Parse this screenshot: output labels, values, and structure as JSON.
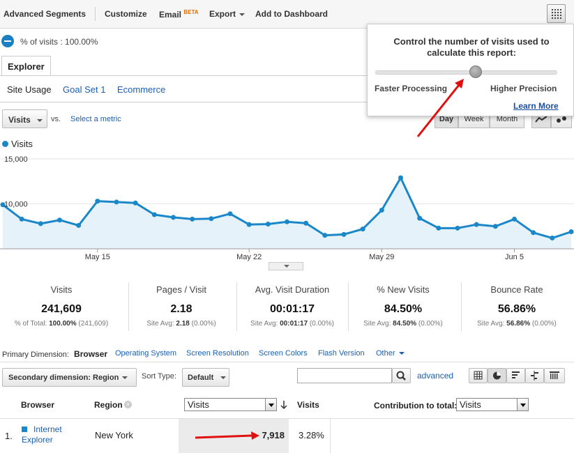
{
  "toolbar": {
    "advanced_segments": "Advanced Segments",
    "customize": "Customize",
    "email": "Email",
    "email_badge": "BETA",
    "export": "Export",
    "add_to_dashboard": "Add to Dashboard",
    "grid_icon": "sampling-grid-icon"
  },
  "sampling": {
    "text": "% of visits : 100.00%"
  },
  "tabs": {
    "explorer": "Explorer"
  },
  "subtabs": [
    {
      "label": "Site Usage"
    },
    {
      "label": "Goal Set 1"
    },
    {
      "label": "Ecommerce"
    }
  ],
  "metric": {
    "selected": "Visits",
    "vs": "vs.",
    "select_metric": "Select a metric"
  },
  "range": {
    "day": "Day",
    "week": "Week",
    "month": "Month"
  },
  "popup": {
    "title": "Control the number of visits used to calculate this report:",
    "left_label": "Faster Processing",
    "right_label": "Higher Precision",
    "learn_more": "Learn More",
    "slider_level": 0.55
  },
  "chart_data": {
    "type": "area",
    "legend": "Visits",
    "y_ticks": [
      "15,000",
      "10,000"
    ],
    "ylim": [
      5000,
      15000
    ],
    "x_tick_labels": [
      "May 15",
      "May 22",
      "May 29",
      "Jun 5"
    ],
    "x_tick_index": [
      5,
      13,
      20,
      27
    ],
    "values": [
      9900,
      8300,
      7800,
      8200,
      7600,
      10300,
      10200,
      10100,
      8800,
      8500,
      8300,
      8350,
      8900,
      7700,
      7750,
      8000,
      7850,
      6500,
      6600,
      7200,
      9300,
      12900,
      8400,
      7300,
      7300,
      7700,
      7500,
      8300,
      6800,
      6200,
      6900
    ],
    "color": "#1a87c9",
    "fill": "#e6f2fa"
  },
  "scorecards": [
    {
      "title": "Visits",
      "value": "241,609",
      "sub_prefix": "% of Total: ",
      "sub_bold": "100.00%",
      "sub_suffix": " (241,609)"
    },
    {
      "title": "Pages / Visit",
      "value": "2.18",
      "sub_prefix": "Site Avg: ",
      "sub_bold": "2.18",
      "sub_suffix": " (0.00%)"
    },
    {
      "title": "Avg. Visit Duration",
      "value": "00:01:17",
      "sub_prefix": "Site Avg: ",
      "sub_bold": "00:01:17",
      "sub_suffix": " (0.00%)"
    },
    {
      "title": "% New Visits",
      "value": "84.50%",
      "sub_prefix": "Site Avg: ",
      "sub_bold": "84.50%",
      "sub_suffix": " (0.00%)"
    },
    {
      "title": "Bounce Rate",
      "value": "56.86%",
      "sub_prefix": "Site Avg: ",
      "sub_bold": "56.86%",
      "sub_suffix": " (0.00%)"
    }
  ],
  "dimensions": {
    "label": "Primary Dimension:",
    "active": "Browser",
    "options": [
      "Operating System",
      "Screen Resolution",
      "Screen Colors",
      "Flash Version",
      "Other"
    ]
  },
  "controls": {
    "secondary": "Secondary dimension: Region",
    "sort_type_label": "Sort Type:",
    "sort_type": "Default",
    "search_value": "",
    "advanced": "advanced"
  },
  "table": {
    "headers": {
      "browser": "Browser",
      "region": "Region",
      "sort_metric": "Visits",
      "visits": "Visits",
      "contribution_label": "Contribution to total:",
      "contribution_metric": "Visits"
    },
    "rows": [
      {
        "index": "1.",
        "browser": "Internet Explorer",
        "region": "New York",
        "visits": "7,918",
        "percent": "3.28%"
      }
    ]
  }
}
